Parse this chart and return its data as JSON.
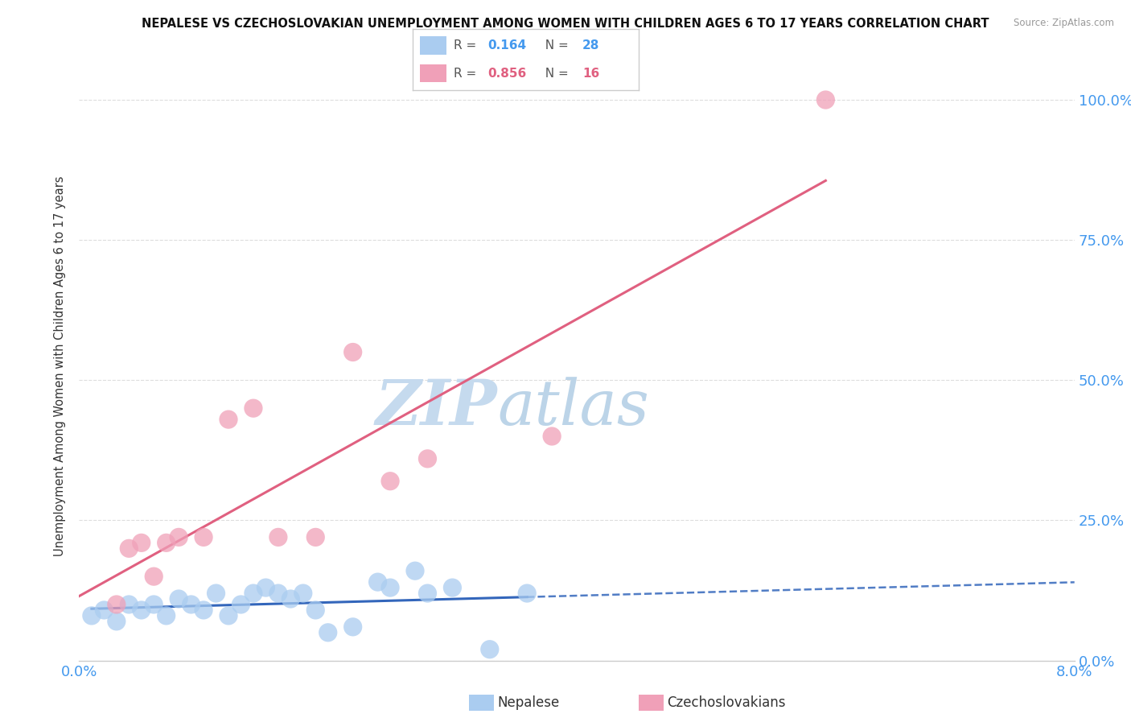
{
  "title": "NEPALESE VS CZECHOSLOVAKIAN UNEMPLOYMENT AMONG WOMEN WITH CHILDREN AGES 6 TO 17 YEARS CORRELATION CHART",
  "source": "Source: ZipAtlas.com",
  "ylabel": "Unemployment Among Women with Children Ages 6 to 17 years",
  "ylabel_right_ticks": [
    "0.0%",
    "25.0%",
    "50.0%",
    "75.0%",
    "100.0%"
  ],
  "ylabel_right_vals": [
    0.0,
    0.25,
    0.5,
    0.75,
    1.0
  ],
  "nepalese_R": 0.164,
  "nepalese_N": 28,
  "czech_R": 0.856,
  "czech_N": 16,
  "nepalese_color": "#aaccf0",
  "nepalese_line_color": "#3366bb",
  "czech_color": "#f0a0b8",
  "czech_line_color": "#e06080",
  "watermark_zip_color": "#d0e4f5",
  "watermark_atlas_color": "#c8dced",
  "nepalese_x": [
    0.001,
    0.002,
    0.003,
    0.004,
    0.005,
    0.006,
    0.007,
    0.008,
    0.009,
    0.01,
    0.011,
    0.012,
    0.013,
    0.014,
    0.015,
    0.016,
    0.017,
    0.018,
    0.019,
    0.02,
    0.022,
    0.024,
    0.025,
    0.027,
    0.028,
    0.03,
    0.033,
    0.036
  ],
  "nepalese_y": [
    0.08,
    0.09,
    0.07,
    0.1,
    0.09,
    0.1,
    0.08,
    0.11,
    0.1,
    0.09,
    0.12,
    0.08,
    0.1,
    0.12,
    0.13,
    0.12,
    0.11,
    0.12,
    0.09,
    0.05,
    0.06,
    0.14,
    0.13,
    0.16,
    0.12,
    0.13,
    0.02,
    0.12
  ],
  "czech_x": [
    0.003,
    0.004,
    0.005,
    0.006,
    0.007,
    0.008,
    0.01,
    0.012,
    0.014,
    0.016,
    0.019,
    0.022,
    0.025,
    0.028,
    0.038,
    0.06
  ],
  "czech_y": [
    0.1,
    0.2,
    0.21,
    0.15,
    0.21,
    0.22,
    0.22,
    0.43,
    0.45,
    0.22,
    0.22,
    0.55,
    0.32,
    0.36,
    0.4,
    1.0
  ],
  "xmin": 0.0,
  "xmax": 0.08,
  "ymin": 0.0,
  "ymax": 1.05,
  "x_tick_positions": [
    0.0,
    0.01,
    0.02,
    0.03,
    0.04,
    0.05,
    0.06,
    0.07,
    0.08
  ],
  "grid_color": "#dddddd",
  "axis_color": "#cccccc",
  "tick_label_color": "#4499ee",
  "bottom_legend_nepalese": "Nepalese",
  "bottom_legend_czech": "Czechoslovakians"
}
